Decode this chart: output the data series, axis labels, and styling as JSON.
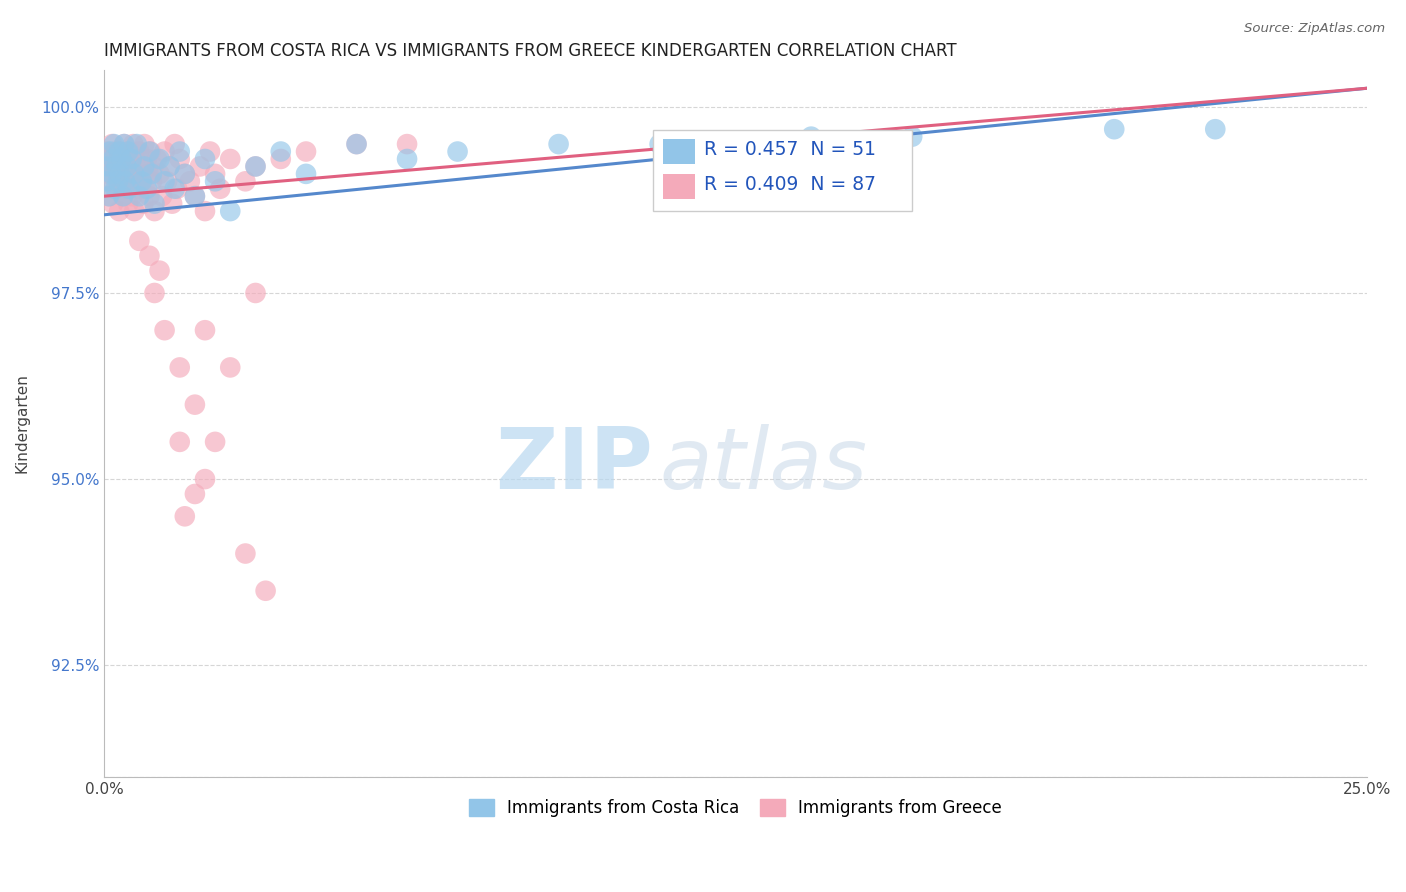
{
  "title": "IMMIGRANTS FROM COSTA RICA VS IMMIGRANTS FROM GREECE KINDERGARTEN CORRELATION CHART",
  "source": "Source: ZipAtlas.com",
  "ylabel_label": "Kindergarten",
  "x_min": 0.0,
  "x_max": 25.0,
  "y_min": 91.0,
  "y_max": 100.5,
  "x_tick_vals": [
    0.0,
    5.0,
    10.0,
    15.0,
    20.0,
    25.0
  ],
  "x_tick_labels": [
    "0.0%",
    "",
    "",
    "",
    "",
    "25.0%"
  ],
  "y_tick_vals": [
    91.0,
    92.5,
    95.0,
    97.5,
    100.0
  ],
  "y_tick_labels": [
    "",
    "92.5%",
    "95.0%",
    "97.5%",
    "100.0%"
  ],
  "costa_rica_color": "#92C5E8",
  "greece_color": "#F4AABA",
  "costa_rica_line_color": "#5588CC",
  "greece_line_color": "#E06080",
  "legend_line1": "R = 0.457  N = 51",
  "legend_line2": "R = 0.409  N = 87",
  "legend_label_costa_rica": "Immigrants from Costa Rica",
  "legend_label_greece": "Immigrants from Greece",
  "watermark_zip": "ZIP",
  "watermark_atlas": "atlas",
  "background_color": "#FFFFFF",
  "grid_color": "#BBBBBB",
  "title_fontsize": 12,
  "costa_rica_x": [
    0.05,
    0.08,
    0.1,
    0.12,
    0.15,
    0.18,
    0.2,
    0.22,
    0.25,
    0.28,
    0.3,
    0.32,
    0.35,
    0.38,
    0.4,
    0.42,
    0.45,
    0.48,
    0.5,
    0.55,
    0.6,
    0.65,
    0.7,
    0.75,
    0.8,
    0.85,
    0.9,
    0.95,
    1.0,
    1.1,
    1.2,
    1.3,
    1.4,
    1.5,
    1.6,
    1.8,
    2.0,
    2.2,
    2.5,
    3.0,
    3.5,
    4.0,
    5.0,
    6.0,
    7.0,
    9.0,
    11.0,
    14.0,
    16.0,
    20.0,
    22.0
  ],
  "costa_rica_y": [
    99.0,
    99.2,
    98.8,
    99.4,
    99.1,
    99.3,
    99.5,
    98.9,
    99.2,
    99.0,
    99.4,
    99.1,
    99.3,
    98.8,
    99.5,
    99.0,
    99.2,
    99.4,
    98.9,
    99.3,
    99.1,
    99.5,
    98.8,
    99.0,
    99.2,
    98.9,
    99.4,
    99.1,
    98.7,
    99.3,
    99.0,
    99.2,
    98.9,
    99.4,
    99.1,
    98.8,
    99.3,
    99.0,
    98.6,
    99.2,
    99.4,
    99.1,
    99.5,
    99.3,
    99.4,
    99.5,
    99.5,
    99.6,
    99.6,
    99.7,
    99.7
  ],
  "greece_x": [
    0.03,
    0.05,
    0.07,
    0.1,
    0.12,
    0.14,
    0.16,
    0.18,
    0.2,
    0.22,
    0.24,
    0.26,
    0.28,
    0.3,
    0.32,
    0.34,
    0.36,
    0.38,
    0.4,
    0.42,
    0.44,
    0.46,
    0.48,
    0.5,
    0.52,
    0.54,
    0.56,
    0.58,
    0.6,
    0.62,
    0.65,
    0.68,
    0.7,
    0.72,
    0.75,
    0.78,
    0.8,
    0.82,
    0.85,
    0.88,
    0.9,
    0.92,
    0.95,
    0.98,
    1.0,
    1.05,
    1.1,
    1.15,
    1.2,
    1.25,
    1.3,
    1.35,
    1.4,
    1.45,
    1.5,
    1.6,
    1.7,
    1.8,
    1.9,
    2.0,
    2.1,
    2.2,
    2.3,
    2.5,
    2.8,
    3.0,
    3.5,
    4.0,
    5.0,
    6.0,
    1.0,
    1.2,
    1.5,
    1.8,
    2.0,
    2.5,
    3.0,
    1.5,
    2.0,
    1.8,
    1.6,
    2.2,
    2.8,
    3.2,
    1.1,
    0.9,
    0.7
  ],
  "greece_y": [
    99.2,
    99.4,
    99.1,
    98.8,
    99.3,
    99.0,
    99.5,
    98.7,
    99.2,
    99.4,
    98.9,
    99.1,
    99.3,
    98.6,
    99.4,
    99.0,
    99.2,
    98.8,
    99.5,
    98.9,
    99.3,
    99.1,
    98.7,
    99.4,
    99.0,
    99.2,
    98.8,
    99.5,
    98.6,
    99.3,
    99.1,
    98.9,
    99.4,
    99.0,
    99.2,
    98.7,
    99.5,
    98.9,
    99.3,
    99.1,
    98.8,
    99.4,
    99.0,
    99.2,
    98.6,
    99.3,
    99.1,
    98.8,
    99.4,
    99.0,
    99.2,
    98.7,
    99.5,
    98.9,
    99.3,
    99.1,
    99.0,
    98.8,
    99.2,
    98.6,
    99.4,
    99.1,
    98.9,
    99.3,
    99.0,
    99.2,
    99.3,
    99.4,
    99.5,
    99.5,
    97.5,
    97.0,
    96.5,
    96.0,
    97.0,
    96.5,
    97.5,
    95.5,
    95.0,
    94.8,
    94.5,
    95.5,
    94.0,
    93.5,
    97.8,
    98.0,
    98.2
  ]
}
